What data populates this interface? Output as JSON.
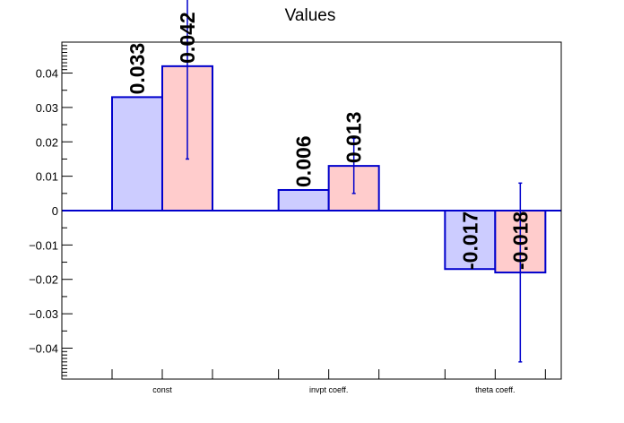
{
  "chart_data": {
    "type": "bar",
    "title": "Values",
    "xlabel": "",
    "ylabel": "",
    "categories": [
      "const",
      "invpt coeff.",
      "theta coeff."
    ],
    "ylim": [
      -0.049,
      0.049
    ],
    "yticks": [
      -0.04,
      -0.03,
      -0.02,
      -0.01,
      0,
      0.01,
      0.02,
      0.03,
      0.04
    ],
    "ytick_labels": [
      "−0.04",
      "−0.03",
      "−0.02",
      "−0.01",
      "0",
      "0.01",
      "0.02",
      "0.03",
      "0.04"
    ],
    "grid": false,
    "series": [
      {
        "values": [
          0.033,
          0.006,
          -0.017
        ],
        "labels": [
          "0.033",
          "0.006",
          "-0.017"
        ],
        "fill": "#ccccff",
        "stroke": "#0000cc"
      },
      {
        "values": [
          0.042,
          0.013,
          -0.018
        ],
        "labels": [
          "0.042",
          "0.013",
          "-0.018"
        ],
        "errors": [
          0.027,
          0.008,
          0.026
        ],
        "fill": "#ffcccc",
        "stroke": "#0000cc"
      }
    ]
  }
}
